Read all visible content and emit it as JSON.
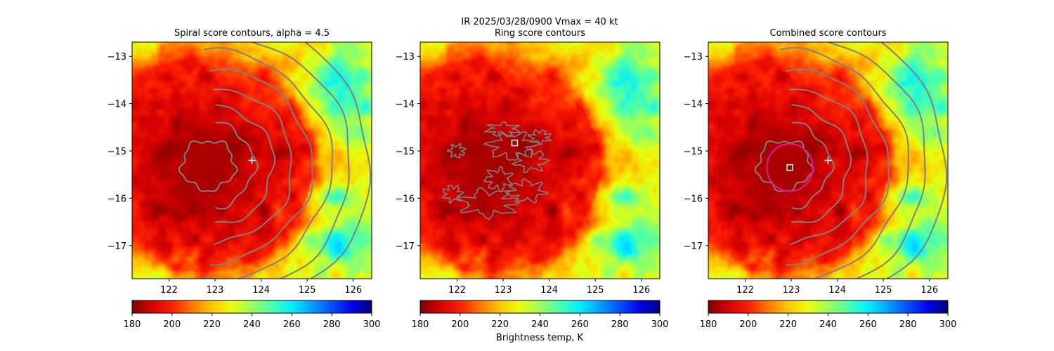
{
  "figure": {
    "suptitle_line1": "IR  2025/03/28/0900    Vmax = 40 kt",
    "colorbar_label": "Brightness temp, K"
  },
  "colors": {
    "contour": "#808080",
    "marker": "#ffffff",
    "ring_circle": "#e0189a",
    "colormap": [
      "#7f0000",
      "#d40000",
      "#ff1e00",
      "#ff7700",
      "#ffc700",
      "#e8ff0e",
      "#9cff5a",
      "#4bffac",
      "#00f0ff",
      "#00a0ff",
      "#0050ff",
      "#0000e8",
      "#00007f"
    ]
  },
  "chart_data": [
    {
      "type": "heatmap",
      "title": "Spiral score contours, alpha =  4.5",
      "variable": "IR brightness temperature",
      "xlim": [
        121.2,
        126.4
      ],
      "ylim": [
        -17.7,
        -12.7
      ],
      "xticks": [
        122,
        123,
        124,
        125,
        126
      ],
      "xtick_labels": [
        "122",
        "123",
        "124",
        "125",
        "126"
      ],
      "yticks": [
        -13,
        -14,
        -15,
        -16,
        -17
      ],
      "ytick_labels": [
        "−13",
        "−14",
        "−15",
        "−16",
        "−17"
      ],
      "storm_center": {
        "lon": 122.7,
        "lat": -15.3
      },
      "cold_core_temp_K": 185,
      "contours": "spiral",
      "markers": [
        {
          "kind": "plus",
          "lon": 123.8,
          "lat": -15.2
        }
      ],
      "colorbar": {
        "min": 180,
        "max": 300,
        "ticks": [
          180,
          200,
          220,
          240,
          260,
          280,
          300
        ],
        "tick_labels": [
          "180",
          "200",
          "220",
          "240",
          "260",
          "280",
          "300"
        ]
      }
    },
    {
      "type": "heatmap",
      "title": "Ring score contours",
      "variable": "IR brightness temperature",
      "xlim": [
        121.2,
        126.4
      ],
      "ylim": [
        -17.7,
        -12.7
      ],
      "xticks": [
        122,
        123,
        124,
        125,
        126
      ],
      "xtick_labels": [
        "122",
        "123",
        "124",
        "125",
        "126"
      ],
      "yticks": [
        -13,
        -14,
        -15,
        -16,
        -17
      ],
      "ytick_labels": [
        "−13",
        "−14",
        "−15",
        "−16",
        "−17"
      ],
      "storm_center": {
        "lon": 122.7,
        "lat": -15.3
      },
      "cold_core_temp_K": 185,
      "contours": "ring",
      "markers": [
        {
          "kind": "square",
          "lon": 123.25,
          "lat": -14.83
        }
      ],
      "colorbar": {
        "min": 180,
        "max": 300,
        "ticks": [
          180,
          200,
          220,
          240,
          260,
          280,
          300
        ],
        "tick_labels": [
          "180",
          "200",
          "220",
          "240",
          "260",
          "280",
          "300"
        ]
      }
    },
    {
      "type": "heatmap",
      "title": "Combined score contours",
      "variable": "IR brightness temperature",
      "xlim": [
        121.2,
        126.4
      ],
      "ylim": [
        -17.7,
        -12.7
      ],
      "xticks": [
        122,
        123,
        124,
        125,
        126
      ],
      "xtick_labels": [
        "122",
        "123",
        "124",
        "125",
        "126"
      ],
      "yticks": [
        -13,
        -14,
        -15,
        -16,
        -17
      ],
      "ytick_labels": [
        "−13",
        "−14",
        "−15",
        "−16",
        "−17"
      ],
      "storm_center": {
        "lon": 122.7,
        "lat": -15.3
      },
      "cold_core_temp_K": 185,
      "contours": "spiral",
      "markers": [
        {
          "kind": "plus",
          "lon": 123.8,
          "lat": -15.2
        },
        {
          "kind": "square",
          "lon": 122.97,
          "lat": -15.35
        },
        {
          "kind": "circle",
          "lon": 122.97,
          "lat": -15.35,
          "radius_deg": 0.5
        }
      ],
      "colorbar": {
        "min": 180,
        "max": 300,
        "ticks": [
          180,
          200,
          220,
          240,
          260,
          280,
          300
        ],
        "tick_labels": [
          "180",
          "200",
          "220",
          "240",
          "260",
          "280",
          "300"
        ]
      }
    }
  ]
}
